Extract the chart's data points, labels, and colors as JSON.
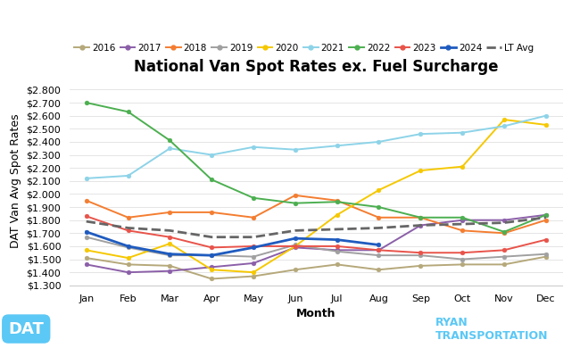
{
  "title": "National Van Spot Rates ex. Fuel Surcharge",
  "xlabel": "Month",
  "ylabel": "DAT Van Avg Spot Rates",
  "months": [
    "Jan",
    "Feb",
    "Mar",
    "Apr",
    "May",
    "Jun",
    "Jul",
    "Aug",
    "Sep",
    "Oct",
    "Nov",
    "Dec"
  ],
  "ylim": [
    1.3,
    2.9
  ],
  "yticks": [
    1.3,
    1.4,
    1.5,
    1.6,
    1.7,
    1.8,
    1.9,
    2.0,
    2.1,
    2.2,
    2.3,
    2.4,
    2.5,
    2.6,
    2.7,
    2.8
  ],
  "series": [
    {
      "label": "2016",
      "color": "#b5a87a",
      "linewidth": 1.4,
      "marker": "o",
      "markersize": 3.5,
      "linestyle": "-",
      "data": [
        1.51,
        1.46,
        1.45,
        1.35,
        1.37,
        1.42,
        1.46,
        1.42,
        1.45,
        1.46,
        1.46,
        1.52
      ]
    },
    {
      "label": "2017",
      "color": "#8b5fa8",
      "linewidth": 1.4,
      "marker": "o",
      "markersize": 3.5,
      "linestyle": "-",
      "data": [
        1.46,
        1.4,
        1.41,
        1.44,
        1.47,
        1.59,
        1.57,
        1.57,
        1.76,
        1.8,
        1.8,
        1.84
      ]
    },
    {
      "label": "2018",
      "color": "#f47d30",
      "linewidth": 1.4,
      "marker": "o",
      "markersize": 3.5,
      "linestyle": "-",
      "data": [
        1.95,
        1.82,
        1.86,
        1.86,
        1.82,
        1.99,
        1.95,
        1.82,
        1.82,
        1.72,
        1.7,
        1.8
      ]
    },
    {
      "label": "2019",
      "color": "#a0a0a0",
      "linewidth": 1.4,
      "marker": "o",
      "markersize": 3.5,
      "linestyle": "-",
      "data": [
        1.67,
        1.59,
        1.53,
        1.53,
        1.52,
        1.61,
        1.56,
        1.53,
        1.53,
        1.5,
        1.52,
        1.54
      ]
    },
    {
      "label": "2020",
      "color": "#f5c800",
      "linewidth": 1.4,
      "marker": "o",
      "markersize": 3.5,
      "linestyle": "-",
      "data": [
        1.57,
        1.51,
        1.62,
        1.42,
        1.4,
        1.6,
        1.84,
        2.03,
        2.18,
        2.21,
        2.57,
        2.53
      ]
    },
    {
      "label": "2021",
      "color": "#8dd3e8",
      "linewidth": 1.4,
      "marker": "o",
      "markersize": 3.5,
      "linestyle": "-",
      "data": [
        2.12,
        2.14,
        2.35,
        2.3,
        2.36,
        2.34,
        2.37,
        2.4,
        2.46,
        2.47,
        2.52,
        2.6
      ]
    },
    {
      "label": "2022",
      "color": "#4caf50",
      "linewidth": 1.4,
      "marker": "o",
      "markersize": 3.5,
      "linestyle": "-",
      "data": [
        2.7,
        2.63,
        2.41,
        2.11,
        1.97,
        1.93,
        1.94,
        1.9,
        1.82,
        1.82,
        1.71,
        1.84
      ]
    },
    {
      "label": "2023",
      "color": "#e8534a",
      "linewidth": 1.4,
      "marker": "o",
      "markersize": 3.5,
      "linestyle": "-",
      "data": [
        1.83,
        1.72,
        1.67,
        1.59,
        1.6,
        1.6,
        1.6,
        1.57,
        1.55,
        1.55,
        1.57,
        1.65
      ]
    },
    {
      "label": "2024",
      "color": "#1f5bbf",
      "linewidth": 2.0,
      "marker": "o",
      "markersize": 3.5,
      "linestyle": "-",
      "data": [
        1.71,
        1.6,
        1.54,
        1.53,
        1.59,
        1.66,
        1.65,
        1.61,
        null,
        null,
        null,
        null
      ]
    },
    {
      "label": "LT Avg",
      "color": "#666666",
      "linewidth": 2.0,
      "marker": null,
      "markersize": 0,
      "linestyle": "--",
      "data": [
        1.79,
        1.74,
        1.72,
        1.67,
        1.67,
        1.72,
        1.73,
        1.74,
        1.76,
        1.77,
        1.78,
        1.82
      ]
    }
  ],
  "background_color": "#ffffff",
  "grid_color": "#e0e0e0",
  "title_fontsize": 12,
  "axis_label_fontsize": 9,
  "tick_fontsize": 8,
  "legend_fontsize": 7.5
}
